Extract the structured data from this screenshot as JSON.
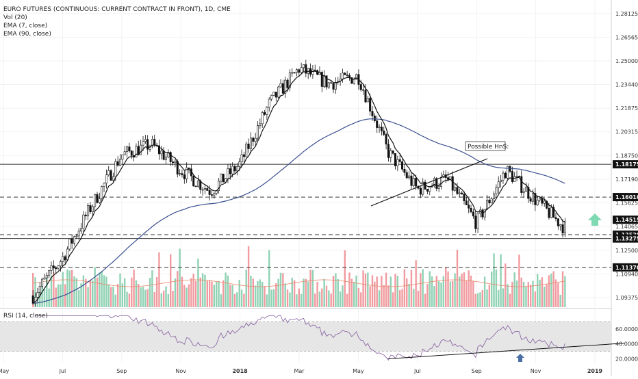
{
  "legend": {
    "symbol": "EURO FUTURES (CONTINUOUS: CURRENT CONTRACT IN FRONT), 1D, CME",
    "vol": "Vol (20)",
    "ema7": "EMA (7, close)",
    "ema90": "EMA (90, close)",
    "rsi": "RSI (14, close)"
  },
  "annotations": {
    "hns": "Possible HnS:"
  },
  "colors": {
    "up_volume": "#8fd2b4",
    "down_volume": "#f19ba0",
    "ema90": "#3a4f8f",
    "ema7": "#111111",
    "arrow_up_green": "#7fd9b2",
    "arrow_up_blue": "#4a6fa5",
    "rsi_line": "#8e6aa6",
    "rsi_band": "#e6e6e6",
    "price_tag_bg": "#111111",
    "price_tag_text": "#ffffff",
    "hline": "#333333"
  },
  "chart_data": {
    "type": "candlestick",
    "symbol": "EURO FUTURES (CONTINUOUS: CURRENT CONTRACT IN FRONT), 1D, CME",
    "price_axis_ticks": [
      "1.28125",
      "1.26565",
      "1.25000",
      "1.23440",
      "1.21875",
      "1.20315",
      "1.18750",
      "1.17190",
      "1.15625",
      "1.14065",
      "1.12500",
      "1.10940",
      "1.09375"
    ],
    "price_tags": [
      "1.18175",
      "1.16010",
      "1.14515",
      "1.13530",
      "1.13275",
      "1.11370"
    ],
    "ylim": [
      1.085,
      1.29
    ],
    "time_axis_ticks": [
      "May",
      "Jul",
      "Sep",
      "Nov",
      "2018",
      "Mar",
      "May",
      "Jul",
      "Sep",
      "Nov",
      "2019"
    ],
    "price_path": [
      {
        "date": "2017-05",
        "close": 1.095
      },
      {
        "date": "2017-06",
        "close": 1.12
      },
      {
        "date": "2017-07",
        "close": 1.155
      },
      {
        "date": "2017-08",
        "close": 1.188
      },
      {
        "date": "2017-09",
        "close": 1.195
      },
      {
        "date": "2017-10",
        "close": 1.178
      },
      {
        "date": "2017-11",
        "close": 1.164
      },
      {
        "date": "2017-12",
        "close": 1.182
      },
      {
        "date": "2018-01",
        "close": 1.222
      },
      {
        "date": "2018-02",
        "close": 1.245
      },
      {
        "date": "2018-03",
        "close": 1.235
      },
      {
        "date": "2018-04",
        "close": 1.24
      },
      {
        "date": "2018-05",
        "close": 1.19
      },
      {
        "date": "2018-06",
        "close": 1.165
      },
      {
        "date": "2018-07",
        "close": 1.172
      },
      {
        "date": "2018-08",
        "close": 1.143
      },
      {
        "date": "2018-09",
        "close": 1.178
      },
      {
        "date": "2018-10",
        "close": 1.158
      },
      {
        "date": "2018-11",
        "close": 1.1395
      }
    ],
    "horizontal_levels": [
      {
        "value": 1.18175,
        "style": "solid"
      },
      {
        "value": 1.1601,
        "style": "dashed"
      },
      {
        "value": 1.1353,
        "style": "dashed"
      },
      {
        "value": 1.13275,
        "style": "solid"
      },
      {
        "value": 1.1137,
        "style": "dashed"
      }
    ],
    "rsi_axis_ticks": [
      "60.0000",
      "40.0000",
      "20.0000"
    ],
    "rsi_band": [
      30,
      70
    ],
    "rsi_trendline": [
      {
        "date": "2018-05",
        "value": 20
      },
      {
        "date": "2019-01",
        "value": 41
      }
    ]
  }
}
